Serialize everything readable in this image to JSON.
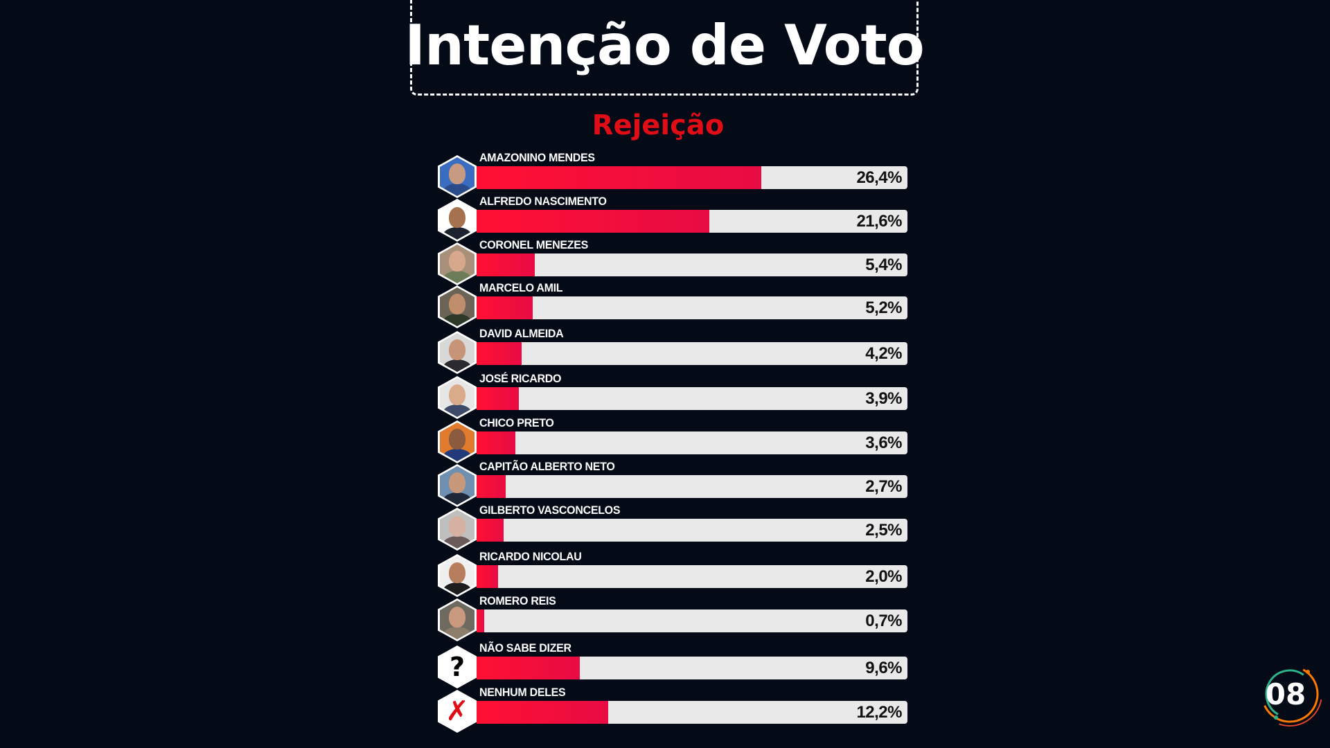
{
  "title": "Intenção de Voto",
  "subtitle": "Rejeição",
  "logo": {
    "text": "08",
    "colors": [
      "#ff7a00",
      "#2db38a",
      "#e0452b"
    ]
  },
  "colors": {
    "background": "#040b17",
    "bar": "#ff1033",
    "track": "#e9e9e9",
    "subtitle": "#e00d16"
  },
  "chart_data": {
    "type": "bar",
    "orientation": "horizontal",
    "title": "Intenção de Voto",
    "subtitle": "Rejeição",
    "xlim": [
      0,
      40
    ],
    "categories": [
      "AMAZONINO MENDES",
      "ALFREDO NASCIMENTO",
      "CORONEL MENEZES",
      "MARCELO AMIL",
      "DAVID ALMEIDA",
      "JOSÉ RICARDO",
      "CHICO PRETO",
      "CAPITÃO ALBERTO NETO",
      "GILBERTO VASCONCELOS",
      "RICARDO NICOLAU",
      "ROMERO REIS",
      "NÃO SABE DIZER",
      "NENHUM DELES"
    ],
    "values": [
      26.4,
      21.6,
      5.4,
      5.2,
      4.2,
      3.9,
      3.6,
      2.7,
      2.5,
      2.0,
      0.7,
      9.6,
      12.2
    ],
    "value_labels": [
      "26,4%",
      "21,6%",
      "5,4%",
      "5,2%",
      "4,2%",
      "3,9%",
      "3,6%",
      "2,7%",
      "2,5%",
      "2,0%",
      "0,7%",
      "9,6%",
      "12,2%"
    ],
    "avatars": [
      {
        "icon": "person-photo-icon",
        "bg": "#3a6cc0",
        "skin": "#c89a82",
        "shirt": "#2a4c8a"
      },
      {
        "icon": "person-photo-icon",
        "bg": "#ffffff",
        "skin": "#a5714e",
        "shirt": "#1c2230"
      },
      {
        "icon": "person-photo-icon",
        "bg": "#a88f7a",
        "skin": "#d8a88c",
        "shirt": "#6d7c58"
      },
      {
        "icon": "person-photo-icon",
        "bg": "#6b6355",
        "skin": "#c08e6c",
        "shirt": "#2d3a2a"
      },
      {
        "icon": "person-photo-icon",
        "bg": "#d8d8d8",
        "skin": "#c79477",
        "shirt": "#2a2a30"
      },
      {
        "icon": "person-photo-icon",
        "bg": "#e6e6e6",
        "skin": "#d9ab8a",
        "shirt": "#3e4a6a"
      },
      {
        "icon": "person-photo-icon",
        "bg": "#e07a2c",
        "skin": "#8a5b3e",
        "shirt": "#233a7a"
      },
      {
        "icon": "person-photo-icon",
        "bg": "#6f8fb0",
        "skin": "#c8987a",
        "shirt": "#1f2838"
      },
      {
        "icon": "person-photo-icon",
        "bg": "#bfbfbf",
        "skin": "#d6b0a0",
        "shirt": "#6a5a5a"
      },
      {
        "icon": "person-photo-icon",
        "bg": "#f0f0f0",
        "skin": "#b67e5c",
        "shirt": "#1d1d1d"
      },
      {
        "icon": "person-photo-icon",
        "bg": "#6e6a60",
        "skin": "#c99a80",
        "shirt": "#8c7e6a"
      },
      {
        "icon": "question-mark-icon",
        "glyph": "?"
      },
      {
        "icon": "crossed-out-person-icon",
        "glyph": "✗"
      }
    ]
  }
}
